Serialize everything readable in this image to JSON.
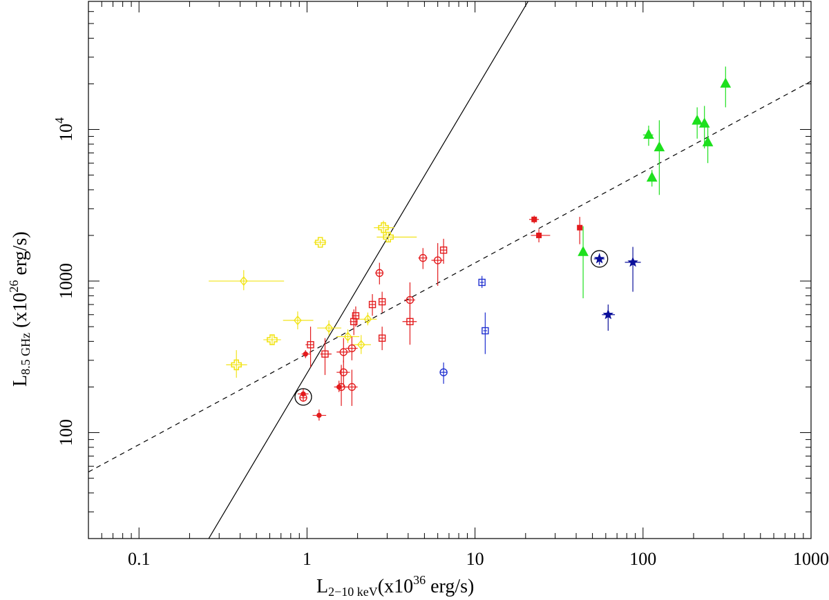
{
  "chart_data": {
    "type": "scatter",
    "title": "",
    "x_scale": "log",
    "y_scale": "log",
    "xlim": [
      0.05,
      1000
    ],
    "ylim": [
      20,
      70000
    ],
    "xlabel": {
      "main": "L",
      "sub": "2−10 keV",
      "rest": "(x10",
      "sup": "36",
      "unit": " erg/s)"
    },
    "ylabel": {
      "main": "L",
      "sub": "8.5 GHz",
      "rest": " (x10",
      "sup": "26",
      "unit": " erg/s)"
    },
    "x_ticks": [
      {
        "value": 0.1,
        "label": "0.1"
      },
      {
        "value": 1,
        "label": "1"
      },
      {
        "value": 10,
        "label": "10"
      },
      {
        "value": 100,
        "label": "100"
      },
      {
        "value": 1000,
        "label": "1000"
      }
    ],
    "y_ticks": [
      {
        "value": 100,
        "label": "100"
      },
      {
        "value": 1000,
        "label": "1000"
      },
      {
        "value": 10000,
        "label": "10",
        "sup": "4"
      }
    ],
    "lines": [
      {
        "name": "fit-solid",
        "style": "solid",
        "color": "#000000",
        "x": [
          0.26,
          20.7
        ],
        "y": [
          20,
          70000
        ]
      },
      {
        "name": "fit-dashed",
        "style": "dashed",
        "color": "#000000",
        "x": [
          0.05,
          1000
        ],
        "y": [
          55,
          20800
        ]
      }
    ],
    "series": [
      {
        "name": "yellow-open-diamonds",
        "color": "#f2e41a",
        "marker": "diamond-open",
        "points": [
          {
            "x": 0.42,
            "y": 1000,
            "xerr": [
              0.26,
              0.73
            ],
            "yerr": [
              870,
              1180
            ]
          },
          {
            "x": 0.88,
            "y": 550,
            "xerr": [
              0.72,
              1.09
            ],
            "yerr": [
              480,
              630
            ]
          },
          {
            "x": 1.35,
            "y": 490,
            "xerr": [
              1.15,
              1.6
            ],
            "yerr": [
              440,
              550
            ]
          },
          {
            "x": 1.75,
            "y": 430,
            "xerr": [
              1.5,
              2.05
            ],
            "yerr": [
              390,
              480
            ]
          },
          {
            "x": 2.1,
            "y": 380,
            "xerr": [
              1.85,
              2.4
            ],
            "yerr": [
              330,
              440
            ]
          },
          {
            "x": 2.3,
            "y": 560,
            "xerr": [
              2.0,
              2.6
            ],
            "yerr": [
              510,
              620
            ]
          }
        ]
      },
      {
        "name": "yellow-open-crosses",
        "color": "#f2e41a",
        "marker": "cross-open",
        "points": [
          {
            "x": 0.38,
            "y": 280,
            "xerr": [
              0.33,
              0.44
            ],
            "yerr": [
              230,
              350
            ]
          },
          {
            "x": 0.62,
            "y": 410,
            "xerr": [
              0.55,
              0.7
            ],
            "yerr": [
              380,
              440
            ]
          },
          {
            "x": 1.2,
            "y": 1800,
            "xerr": [
              1.1,
              1.3
            ],
            "yerr": [
              1720,
              1880
            ]
          },
          {
            "x": 2.85,
            "y": 2250,
            "xerr": [
              2.5,
              3.3
            ],
            "yerr": [
              2000,
              2500
            ]
          },
          {
            "x": 3.05,
            "y": 1950,
            "xerr": [
              2.6,
              4.5
            ],
            "yerr": [
              1800,
              2100
            ]
          }
        ]
      },
      {
        "name": "red-filled-circles",
        "color": "#e31a1c",
        "marker": "circle-filled",
        "points": [
          {
            "x": 0.98,
            "y": 330,
            "xerr": [
              0.93,
              1.05
            ],
            "yerr": [
              310,
              350
            ]
          },
          {
            "x": 0.95,
            "y": 180,
            "xerr": [
              0.88,
              1.02
            ],
            "yerr": [
              165,
              195
            ]
          },
          {
            "x": 1.18,
            "y": 130,
            "xerr": [
              1.08,
              1.3
            ],
            "yerr": [
              120,
              142
            ]
          },
          {
            "x": 1.55,
            "y": 200,
            "xerr": [
              1.45,
              1.68
            ],
            "yerr": [
              185,
              220
            ]
          }
        ]
      },
      {
        "name": "red-open-circles",
        "color": "#e31a1c",
        "marker": "circle-open",
        "points": [
          {
            "x": 0.95,
            "y": 170,
            "xerr": [
              0.9,
              1.0
            ],
            "yerr": [
              160,
              180
            ]
          },
          {
            "x": 1.6,
            "y": 200,
            "xerr": [
              1.5,
              1.75
            ],
            "yerr": [
              150,
              280
            ]
          },
          {
            "x": 1.65,
            "y": 250,
            "xerr": [
              1.5,
              1.8
            ],
            "yerr": [
              200,
              300
            ]
          },
          {
            "x": 1.65,
            "y": 340,
            "xerr": [
              1.5,
              1.8
            ],
            "yerr": [
              290,
              420
            ]
          },
          {
            "x": 1.85,
            "y": 360,
            "xerr": [
              1.7,
              2.0
            ],
            "yerr": [
              300,
              430
            ]
          },
          {
            "x": 1.85,
            "y": 200,
            "xerr": [
              1.7,
              2.0
            ],
            "yerr": [
              150,
              260
            ]
          },
          {
            "x": 2.7,
            "y": 1130,
            "xerr": [
              2.55,
              2.85
            ],
            "yerr": [
              950,
              1320
            ]
          },
          {
            "x": 4.1,
            "y": 750,
            "xerr": [
              3.8,
              4.4
            ],
            "yerr": [
              530,
              980
            ]
          },
          {
            "x": 4.9,
            "y": 1420,
            "xerr": [
              4.6,
              5.2
            ],
            "yerr": [
              1200,
              1650
            ]
          },
          {
            "x": 6.0,
            "y": 1370,
            "xerr": [
              5.5,
              6.5
            ],
            "yerr": [
              930,
              1780
            ]
          }
        ]
      },
      {
        "name": "red-open-squares",
        "color": "#e31a1c",
        "marker": "square-open",
        "points": [
          {
            "x": 1.05,
            "y": 380,
            "xerr": [
              0.98,
              1.1
            ],
            "yerr": [
              270,
              500
            ]
          },
          {
            "x": 1.28,
            "y": 330,
            "xerr": [
              1.2,
              1.4
            ],
            "yerr": [
              240,
              420
            ]
          },
          {
            "x": 1.9,
            "y": 540,
            "xerr": [
              1.8,
              2.0
            ],
            "yerr": [
              440,
              650
            ]
          },
          {
            "x": 1.95,
            "y": 590,
            "xerr": [
              1.85,
              2.05
            ],
            "yerr": [
              500,
              680
            ]
          },
          {
            "x": 2.45,
            "y": 700,
            "xerr": [
              2.35,
              2.55
            ],
            "yerr": [
              590,
              820
            ]
          },
          {
            "x": 2.8,
            "y": 730,
            "xerr": [
              2.7,
              2.9
            ],
            "yerr": [
              620,
              850
            ]
          },
          {
            "x": 2.8,
            "y": 420,
            "xerr": [
              2.7,
              2.9
            ],
            "yerr": [
              350,
              500
            ]
          },
          {
            "x": 4.1,
            "y": 540,
            "xerr": [
              3.7,
              4.5
            ],
            "yerr": [
              380,
              700
            ]
          },
          {
            "x": 6.5,
            "y": 1600,
            "xerr": [
              6.2,
              6.8
            ],
            "yerr": [
              1300,
              1900
            ]
          }
        ]
      },
      {
        "name": "red-filled-squares",
        "color": "#e31a1c",
        "marker": "square-filled",
        "points": [
          {
            "x": 22.5,
            "y": 2550,
            "xerr": [
              21.0,
              24.0
            ],
            "yerr": [
              2400,
              2700
            ]
          },
          {
            "x": 24.0,
            "y": 2000,
            "xerr": [
              21.5,
              28.0
            ],
            "yerr": [
              1800,
              2200
            ]
          },
          {
            "x": 42.0,
            "y": 2250,
            "xerr": [
              41.0,
              43.0
            ],
            "yerr": [
              1750,
              2650
            ]
          }
        ]
      },
      {
        "name": "blue-open-markers",
        "color": "#1f2fd0",
        "marker": "square-open",
        "points": [
          {
            "x": 11.0,
            "y": 980,
            "xerr": [
              10.7,
              11.3
            ],
            "yerr": [
              900,
              1080
            ]
          },
          {
            "x": 11.5,
            "y": 470,
            "xerr": [
              11.2,
              11.8
            ],
            "yerr": [
              330,
              620
            ]
          }
        ]
      },
      {
        "name": "blue-open-circle",
        "color": "#1f2fd0",
        "marker": "circle-open",
        "points": [
          {
            "x": 6.5,
            "y": 250,
            "xerr": [
              6.2,
              6.8
            ],
            "yerr": [
              210,
              290
            ]
          }
        ]
      },
      {
        "name": "blue-stars",
        "color": "#0a0f9a",
        "marker": "star-filled",
        "points": [
          {
            "x": 55.0,
            "y": 1400,
            "xerr": [
              51.0,
              59.0
            ],
            "yerr": [
              1280,
              1520
            ]
          },
          {
            "x": 62.0,
            "y": 600,
            "xerr": [
              57.0,
              68.0
            ],
            "yerr": [
              470,
              700
            ]
          },
          {
            "x": 87.0,
            "y": 1330,
            "xerr": [
              78.0,
              97.0
            ],
            "yerr": [
              850,
              1680
            ]
          }
        ]
      },
      {
        "name": "green-triangles",
        "color": "#1de01d",
        "marker": "triangle-filled",
        "points": [
          {
            "x": 44.0,
            "y": 1550,
            "xerr": [
              43.0,
              45.0
            ],
            "yerr": [
              770,
              2300
            ]
          },
          {
            "x": 108.0,
            "y": 9200,
            "xerr": [
              100.0,
              115.0
            ],
            "yerr": [
              7800,
              10600
            ]
          },
          {
            "x": 113.0,
            "y": 4800,
            "xerr": [
              110.0,
              116.0
            ],
            "yerr": [
              4200,
              5400
            ]
          },
          {
            "x": 125.0,
            "y": 7600,
            "xerr": [
              122.0,
              128.0
            ],
            "yerr": [
              3700,
              11500
            ]
          },
          {
            "x": 210.0,
            "y": 11400,
            "xerr": [
              200.0,
              220.0
            ],
            "yerr": [
              8700,
              14000
            ]
          },
          {
            "x": 232.0,
            "y": 10900,
            "xerr": [
              225.0,
              240.0
            ],
            "yerr": [
              7500,
              14300
            ]
          },
          {
            "x": 243.0,
            "y": 8200,
            "xerr": [
              237.0,
              250.0
            ],
            "yerr": [
              6000,
              10400
            ]
          },
          {
            "x": 310.0,
            "y": 20000,
            "xerr": [
              300.0,
              320.0
            ],
            "yerr": [
              14000,
              26000
            ]
          }
        ]
      }
    ],
    "highlights": [
      {
        "x": 0.95,
        "y": 172,
        "shape": "open-circle",
        "color": "#000000"
      },
      {
        "x": 55.0,
        "y": 1400,
        "shape": "open-circle",
        "color": "#000000"
      }
    ]
  }
}
